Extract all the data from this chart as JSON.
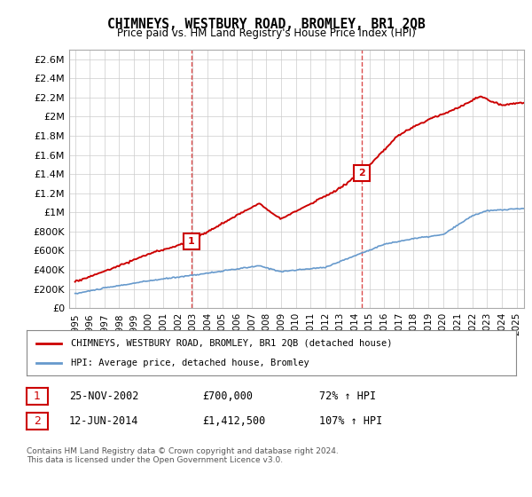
{
  "title": "CHIMNEYS, WESTBURY ROAD, BROMLEY, BR1 2QB",
  "subtitle": "Price paid vs. HM Land Registry's House Price Index (HPI)",
  "ylim": [
    0,
    2700000
  ],
  "yticks": [
    0,
    200000,
    400000,
    600000,
    800000,
    1000000,
    1200000,
    1400000,
    1600000,
    1800000,
    2000000,
    2200000,
    2400000,
    2600000
  ],
  "ytick_labels": [
    "£0",
    "£200K",
    "£400K",
    "£600K",
    "£800K",
    "£1M",
    "£1.2M",
    "£1.4M",
    "£1.6M",
    "£1.8M",
    "£2M",
    "£2.2M",
    "£2.4M",
    "£2.6M"
  ],
  "xlim_start": 1995.0,
  "xlim_end": 2025.5,
  "sale1_x": 2002.9,
  "sale1_y": 700000,
  "sale1_label": "1",
  "sale2_x": 2014.45,
  "sale2_y": 1412500,
  "sale2_label": "2",
  "red_line_color": "#cc0000",
  "blue_line_color": "#6699cc",
  "annotation_box_color": "#cc0000",
  "legend_house_label": "CHIMNEYS, WESTBURY ROAD, BROMLEY, BR1 2QB (detached house)",
  "legend_hpi_label": "HPI: Average price, detached house, Bromley",
  "table_row1": [
    "1",
    "25-NOV-2002",
    "£700,000",
    "72% ↑ HPI"
  ],
  "table_row2": [
    "2",
    "12-JUN-2014",
    "£1,412,500",
    "107% ↑ HPI"
  ],
  "footer": "Contains HM Land Registry data © Crown copyright and database right 2024.\nThis data is licensed under the Open Government Licence v3.0.",
  "bg_color": "#ffffff",
  "grid_color": "#cccccc"
}
